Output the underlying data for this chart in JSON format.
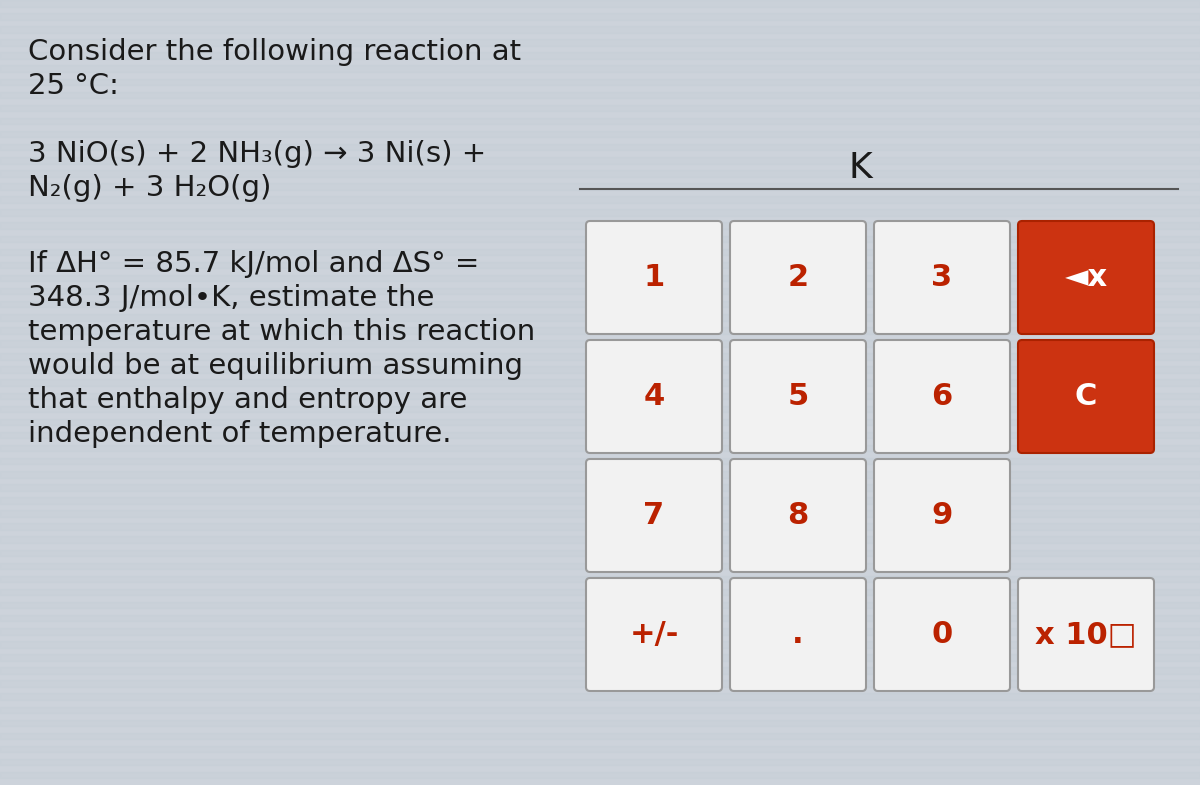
{
  "bg_color": "#cdd3db",
  "stripe_color": "#bfc8d2",
  "text_color": "#1a1a1a",
  "button_face": "#f2f2f2",
  "button_edge": "#999999",
  "button_red_face": "#cc3311",
  "button_red_edge": "#aa2200",
  "button_text_normal": "#bb2200",
  "button_text_red": "#ffffff",
  "line1": "Consider the following reaction at",
  "line2": "25 °C:",
  "eq_line1": "3 NiO(s) + 2 NH₃(g) → 3 Ni(s) +",
  "eq_line2": "N₂(g) + 3 H₂O(g)",
  "cond_line1": "If ΔH° = 85.7 kJ/mol and ΔS° =",
  "cond_line2": "348.3 J/mol•K, estimate the",
  "cond_line3": "temperature at which this reaction",
  "cond_line4": "would be at equilibrium assuming",
  "cond_line5": "that enthalpy and entropy are",
  "cond_line6": "independent of temperature.",
  "display_label": "K",
  "buttons": [
    {
      "label": "1",
      "col": 0,
      "row": 0,
      "red": false
    },
    {
      "label": "2",
      "col": 1,
      "row": 0,
      "red": false
    },
    {
      "label": "3",
      "col": 2,
      "row": 0,
      "red": false
    },
    {
      "label": "◄x",
      "col": 3,
      "row": 0,
      "red": true
    },
    {
      "label": "4",
      "col": 0,
      "row": 1,
      "red": false
    },
    {
      "label": "5",
      "col": 1,
      "row": 1,
      "red": false
    },
    {
      "label": "6",
      "col": 2,
      "row": 1,
      "red": false
    },
    {
      "label": "C",
      "col": 3,
      "row": 1,
      "red": true
    },
    {
      "label": "7",
      "col": 0,
      "row": 2,
      "red": false
    },
    {
      "label": "8",
      "col": 1,
      "row": 2,
      "red": false
    },
    {
      "label": "9",
      "col": 2,
      "row": 2,
      "red": false
    },
    {
      "label": "+/-",
      "col": 0,
      "row": 3,
      "red": false
    },
    {
      "label": ".",
      "col": 1,
      "row": 3,
      "red": false
    },
    {
      "label": "0",
      "col": 2,
      "row": 3,
      "red": false
    },
    {
      "label": "x 10□",
      "col": 3,
      "row": 3,
      "red": false
    }
  ]
}
